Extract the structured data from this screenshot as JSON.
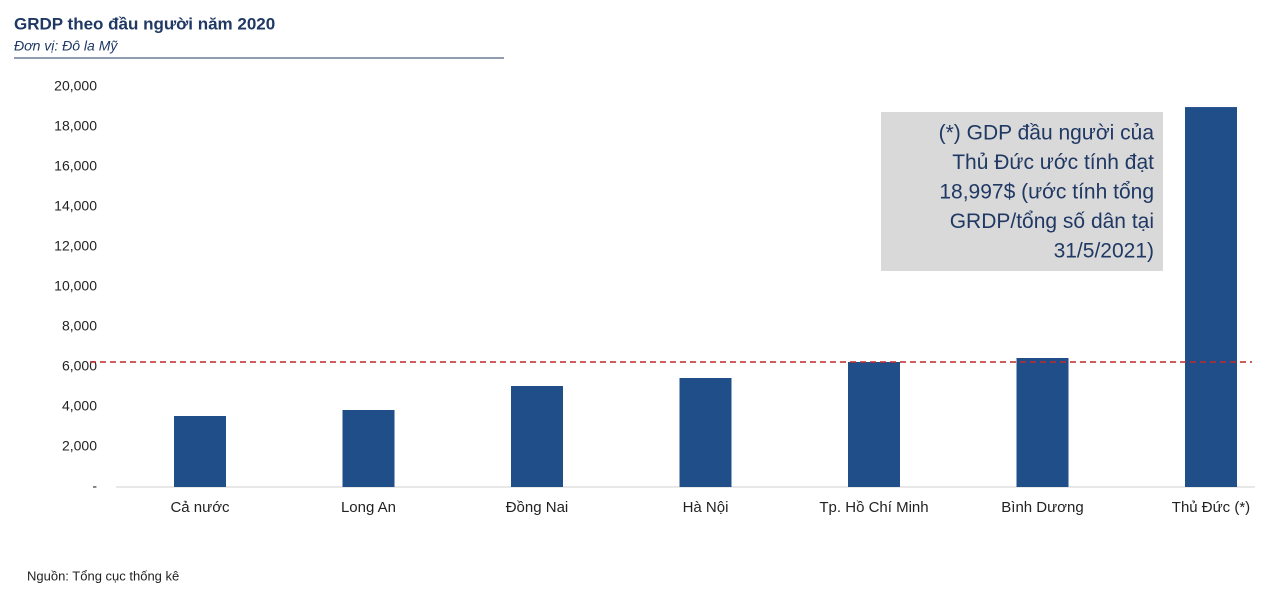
{
  "chart_data": {
    "type": "bar",
    "title": "GRDP theo đầu người năm 2020",
    "subtitle": "Đơn vị: Đô la Mỹ",
    "categories": [
      "Cả nước",
      "Long An",
      "Đồng Nai",
      "Hà Nội",
      "Tp. Hồ Chí Minh",
      "Bình Dương",
      "Thủ Đức (*)"
    ],
    "values": [
      3550,
      3850,
      5050,
      5450,
      6250,
      6450,
      18997
    ],
    "color": "#1f4e89",
    "ylim": [
      0,
      20000
    ],
    "yticks": [
      {
        "value": 0,
        "label": "-"
      },
      {
        "value": 2000,
        "label": "2,000"
      },
      {
        "value": 4000,
        "label": "4,000"
      },
      {
        "value": 6000,
        "label": "6,000"
      },
      {
        "value": 8000,
        "label": "8,000"
      },
      {
        "value": 10000,
        "label": "10,000"
      },
      {
        "value": 12000,
        "label": "12,000"
      },
      {
        "value": 14000,
        "label": "14,000"
      },
      {
        "value": 16000,
        "label": "16,000"
      },
      {
        "value": 18000,
        "label": "18,000"
      },
      {
        "value": 20000,
        "label": "20,000"
      }
    ],
    "reference_line": {
      "value": 6250,
      "color": "#c0282d"
    },
    "annotation": [
      "(*) GDP đầu người của",
      "Thủ Đức ước tính đạt",
      "18,997$ (ước tính tổng",
      "GRDP/tổng số dân tại",
      "31/5/2021)"
    ],
    "source": "Nguồn: Tổng cục thống kê"
  }
}
